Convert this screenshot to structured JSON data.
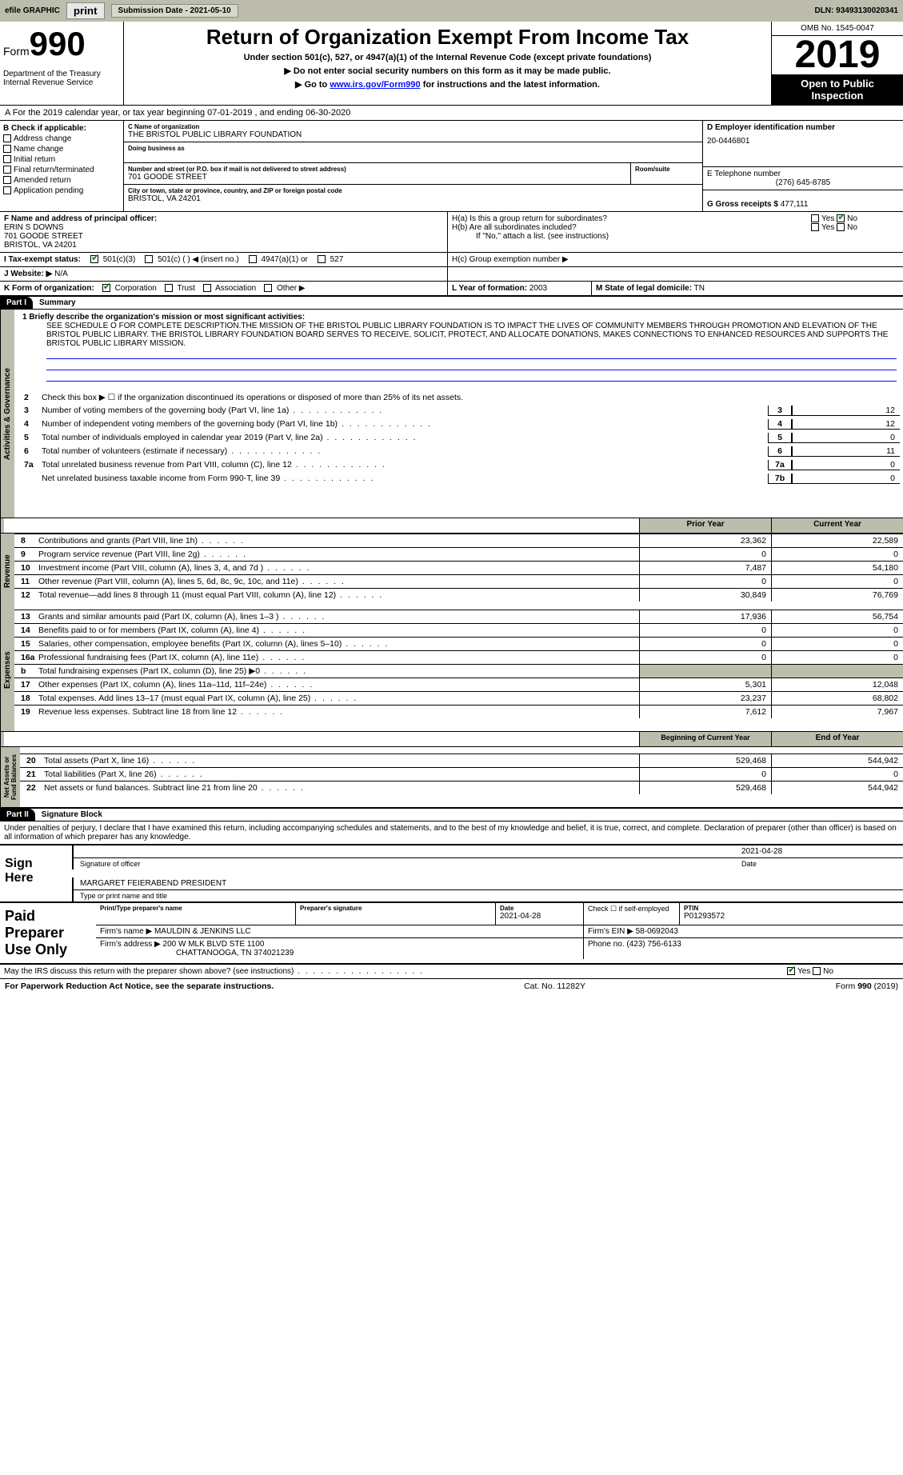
{
  "topbar": {
    "efile_label": "efile GRAPHIC",
    "print_btn": "print",
    "sub_date_label": "Submission Date - 2021-05-10",
    "dln": "DLN: 93493130020341"
  },
  "header": {
    "form_prefix": "Form",
    "form_number": "990",
    "dept": "Department of the Treasury\nInternal Revenue Service",
    "title": "Return of Organization Exempt From Income Tax",
    "subtitle": "Under section 501(c), 527, or 4947(a)(1) of the Internal Revenue Code (except private foundations)",
    "arrow1": "▶ Do not enter social security numbers on this form as it may be made public.",
    "arrow2_pre": "▶ Go to ",
    "arrow2_link": "www.irs.gov/Form990",
    "arrow2_post": " for instructions and the latest information.",
    "omb": "OMB No. 1545-0047",
    "year": "2019",
    "open": "Open to Public Inspection"
  },
  "sectionA": {
    "taxyear": "A For the 2019 calendar year, or tax year beginning 07-01-2019    , and ending 06-30-2020",
    "b_label": "B Check if applicable:",
    "b_opts": [
      "Address change",
      "Name change",
      "Initial return",
      "Final return/terminated",
      "Amended return",
      "Application pending"
    ],
    "c_label": "C Name of organization",
    "c_name": "THE BRISTOL PUBLIC LIBRARY FOUNDATION",
    "dba_label": "Doing business as",
    "addr_label": "Number and street (or P.O. box if mail is not delivered to street address)",
    "addr": "701 GOODE STREET",
    "room_label": "Room/suite",
    "city_label": "City or town, state or province, country, and ZIP or foreign postal code",
    "city": "BRISTOL, VA  24201",
    "d_label": "D Employer identification number",
    "d_val": "20-0446801",
    "e_label": "E Telephone number",
    "e_val": "(276) 645-8785",
    "g_label": "G Gross receipts $",
    "g_val": "477,111",
    "f_label": "F  Name and address of principal officer:",
    "f_name": "ERIN S DOWNS",
    "f_addr1": "701 GOODE STREET",
    "f_addr2": "BRISTOL, VA  24201",
    "ha_label": "H(a)  Is this a group return for subordinates?",
    "hb_label": "H(b)  Are all subordinates included?",
    "h_note": "If \"No,\" attach a list. (see instructions)",
    "hc_label": "H(c)  Group exemption number ▶",
    "yes": "Yes",
    "no": "No",
    "i_label": "I    Tax-exempt status:",
    "i_501c3": "501(c)(3)",
    "i_501c": "501(c) (   ) ◀ (insert no.)",
    "i_4947": "4947(a)(1) or",
    "i_527": "527",
    "j_label": "J   Website: ▶",
    "j_val": "N/A",
    "k_label": "K Form of organization:",
    "k_corp": "Corporation",
    "k_trust": "Trust",
    "k_assoc": "Association",
    "k_other": "Other ▶",
    "l_label": "L Year of formation:",
    "l_val": "2003",
    "m_label": "M State of legal domicile:",
    "m_val": "TN"
  },
  "part1": {
    "label": "Part I",
    "title": "Summary",
    "tab_ag": "Activities & Governance",
    "tab_rev": "Revenue",
    "tab_exp": "Expenses",
    "tab_na": "Net Assets or Fund Balances",
    "l1_label": "1  Briefly describe the organization's mission or most significant activities:",
    "l1_text": "SEE SCHEDULE O FOR COMPLETE DESCRIPTION.THE MISSION OF THE BRISTOL PUBLIC LIBRARY FOUNDATION IS TO IMPACT THE LIVES OF COMMUNITY MEMBERS THROUGH PROMOTION AND ELEVATION OF THE BRISTOL PUBLIC LIBRARY. THE BRISTOL LIBRARY FOUNDATION BOARD SERVES TO RECEIVE, SOLICIT, PROTECT, AND ALLOCATE DONATIONS, MAKES CONNECTIONS TO ENHANCED RESOURCES AND SUPPORTS THE BRISTOL PUBLIC LIBRARY MISSION.",
    "l2": "Check this box ▶ ☐  if the organization discontinued its operations or disposed of more than 25% of its net assets.",
    "rows_ag": [
      {
        "n": "3",
        "t": "Number of voting members of the governing body (Part VI, line 1a)",
        "b": "3",
        "v": "12"
      },
      {
        "n": "4",
        "t": "Number of independent voting members of the governing body (Part VI, line 1b)",
        "b": "4",
        "v": "12"
      },
      {
        "n": "5",
        "t": "Total number of individuals employed in calendar year 2019 (Part V, line 2a)",
        "b": "5",
        "v": "0"
      },
      {
        "n": "6",
        "t": "Total number of volunteers (estimate if necessary)",
        "b": "6",
        "v": "11"
      },
      {
        "n": "7a",
        "t": "Total unrelated business revenue from Part VIII, column (C), line 12",
        "b": "7a",
        "v": "0"
      },
      {
        "n": "",
        "t": "Net unrelated business taxable income from Form 990-T, line 39",
        "b": "7b",
        "v": "0"
      }
    ],
    "col_prior": "Prior Year",
    "col_curr": "Current Year",
    "rows_rev": [
      {
        "n": "8",
        "t": "Contributions and grants (Part VIII, line 1h)",
        "p": "23,362",
        "c": "22,589"
      },
      {
        "n": "9",
        "t": "Program service revenue (Part VIII, line 2g)",
        "p": "0",
        "c": "0"
      },
      {
        "n": "10",
        "t": "Investment income (Part VIII, column (A), lines 3, 4, and 7d )",
        "p": "7,487",
        "c": "54,180"
      },
      {
        "n": "11",
        "t": "Other revenue (Part VIII, column (A), lines 5, 6d, 8c, 9c, 10c, and 11e)",
        "p": "0",
        "c": "0"
      },
      {
        "n": "12",
        "t": "Total revenue—add lines 8 through 11 (must equal Part VIII, column (A), line 12)",
        "p": "30,849",
        "c": "76,769"
      }
    ],
    "rows_exp": [
      {
        "n": "13",
        "t": "Grants and similar amounts paid (Part IX, column (A), lines 1–3 )",
        "p": "17,936",
        "c": "56,754"
      },
      {
        "n": "14",
        "t": "Benefits paid to or for members (Part IX, column (A), line 4)",
        "p": "0",
        "c": "0"
      },
      {
        "n": "15",
        "t": "Salaries, other compensation, employee benefits (Part IX, column (A), lines 5–10)",
        "p": "0",
        "c": "0"
      },
      {
        "n": "16a",
        "t": "Professional fundraising fees (Part IX, column (A), line 11e)",
        "p": "0",
        "c": "0"
      },
      {
        "n": "b",
        "t": "Total fundraising expenses (Part IX, column (D), line 25) ▶0",
        "p": "",
        "c": "",
        "shade": true
      },
      {
        "n": "17",
        "t": "Other expenses (Part IX, column (A), lines 11a–11d, 11f–24e)",
        "p": "5,301",
        "c": "12,048"
      },
      {
        "n": "18",
        "t": "Total expenses. Add lines 13–17 (must equal Part IX, column (A), line 25)",
        "p": "23,237",
        "c": "68,802"
      },
      {
        "n": "19",
        "t": "Revenue less expenses. Subtract line 18 from line 12",
        "p": "7,612",
        "c": "7,967"
      }
    ],
    "col_beg": "Beginning of Current Year",
    "col_end": "End of Year",
    "rows_na": [
      {
        "n": "20",
        "t": "Total assets (Part X, line 16)",
        "p": "529,468",
        "c": "544,942"
      },
      {
        "n": "21",
        "t": "Total liabilities (Part X, line 26)",
        "p": "0",
        "c": "0"
      },
      {
        "n": "22",
        "t": "Net assets or fund balances. Subtract line 21 from line 20",
        "p": "529,468",
        "c": "544,942"
      }
    ]
  },
  "part2": {
    "label": "Part II",
    "title": "Signature Block",
    "perjury": "Under penalties of perjury, I declare that I have examined this return, including accompanying schedules and statements, and to the best of my knowledge and belief, it is true, correct, and complete. Declaration of preparer (other than officer) is based on all information of which preparer has any knowledge.",
    "sign_here": "Sign Here",
    "sig_officer": "Signature of officer",
    "sig_date": "Date",
    "sig_date_val": "2021-04-28",
    "sig_name": "MARGARET FEIERABEND  PRESIDENT",
    "sig_name_label": "Type or print name and title",
    "paid": "Paid Preparer Use Only",
    "pp_name_label": "Print/Type preparer's name",
    "pp_sig_label": "Preparer's signature",
    "pp_date_label": "Date",
    "pp_date": "2021-04-28",
    "pp_self_label": "Check ☐ if self-employed",
    "ptin_label": "PTIN",
    "ptin": "P01293572",
    "firm_name_label": "Firm's name   ▶",
    "firm_name": "MAULDIN & JENKINS LLC",
    "firm_ein_label": "Firm's EIN ▶",
    "firm_ein": "58-0692043",
    "firm_addr_label": "Firm's address ▶",
    "firm_addr1": "200 W MLK BLVD STE 1100",
    "firm_addr2": "CHATTANOOGA, TN  374021239",
    "firm_phone_label": "Phone no.",
    "firm_phone": "(423) 756-6133",
    "discuss": "May the IRS discuss this return with the preparer shown above? (see instructions)"
  },
  "footer": {
    "pra": "For Paperwork Reduction Act Notice, see the separate instructions.",
    "cat": "Cat. No. 11282Y",
    "form": "Form 990 (2019)"
  },
  "colors": {
    "shade": "#bcbdac",
    "link": "#0610f7",
    "check": "#1a7a1a"
  }
}
